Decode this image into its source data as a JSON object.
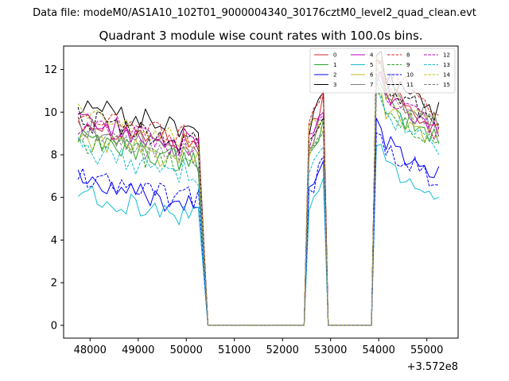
{
  "chart_data": {
    "type": "line",
    "suptitle": "Data file: modeM0/AS1A10_102T01_9000004340_30176cztM0_level2_quad_clean.evt",
    "title": "Quadrant 3 module wise count rates with 100.0s bins.",
    "xlabel": "",
    "ylabel": "",
    "x_offset_label": "+3.572e8",
    "xlim": [
      47450,
      55650
    ],
    "ylim": [
      -0.6,
      13.1
    ],
    "xticks": [
      48000,
      49000,
      50000,
      51000,
      52000,
      53000,
      54000,
      55000
    ],
    "yticks": [
      0,
      2,
      4,
      6,
      8,
      10,
      12
    ],
    "grid": false,
    "legend_position": "top-right",
    "legend_columns": 4,
    "segments": [
      {
        "x_start": 47750,
        "x_end": 50250,
        "n": 26
      },
      {
        "x_start": 52550,
        "x_end": 52850,
        "n": 4
      },
      {
        "x_start": 53950,
        "x_end": 55250,
        "n": 14
      }
    ],
    "zero_spans": [
      [
        50450,
        52450
      ],
      [
        52950,
        53850
      ]
    ],
    "series": [
      {
        "name": "0",
        "color": "#d62728",
        "dash": "solid",
        "levels": [
          9.0,
          9.8,
          10.3
        ]
      },
      {
        "name": "1",
        "color": "#2ca02c",
        "dash": "solid",
        "levels": [
          8.2,
          8.8,
          9.6
        ]
      },
      {
        "name": "2",
        "color": "#0000ff",
        "dash": "solid",
        "levels": [
          6.2,
          6.9,
          7.9
        ]
      },
      {
        "name": "3",
        "color": "#000000",
        "dash": "solid",
        "levels": [
          9.7,
          9.9,
          10.9
        ]
      },
      {
        "name": "4",
        "color": "#c000c0",
        "dash": "solid",
        "levels": [
          9.0,
          9.4,
          10.0
        ]
      },
      {
        "name": "5",
        "color": "#17becf",
        "dash": "solid",
        "levels": [
          5.6,
          6.3,
          6.9
        ]
      },
      {
        "name": "6",
        "color": "#bcbd22",
        "dash": "solid",
        "levels": [
          8.2,
          8.7,
          9.4
        ]
      },
      {
        "name": "7",
        "color": "#7f7f7f",
        "dash": "solid",
        "levels": [
          8.6,
          9.1,
          10.4
        ]
      },
      {
        "name": "8",
        "color": "#d62728",
        "dash": "dashed",
        "levels": [
          9.3,
          9.9,
          11.1
        ]
      },
      {
        "name": "9",
        "color": "#2ca02c",
        "dash": "dashed",
        "levels": [
          8.0,
          8.6,
          9.3
        ]
      },
      {
        "name": "10",
        "color": "#0000ff",
        "dash": "dashed",
        "levels": [
          6.4,
          6.9,
          7.6
        ]
      },
      {
        "name": "11",
        "color": "#000000",
        "dash": "dashed",
        "levels": [
          9.0,
          9.3,
          10.6
        ]
      },
      {
        "name": "12",
        "color": "#c000c0",
        "dash": "dashed",
        "levels": [
          8.8,
          9.2,
          10.0
        ]
      },
      {
        "name": "13",
        "color": "#17becf",
        "dash": "dashed",
        "levels": [
          7.6,
          8.1,
          9.2
        ]
      },
      {
        "name": "14",
        "color": "#bcbd22",
        "dash": "dashed",
        "levels": [
          9.2,
          9.5,
          10.4
        ]
      },
      {
        "name": "15",
        "color": "#7f7f7f",
        "dash": "dashed",
        "levels": [
          8.4,
          8.9,
          10.1
        ]
      }
    ]
  }
}
